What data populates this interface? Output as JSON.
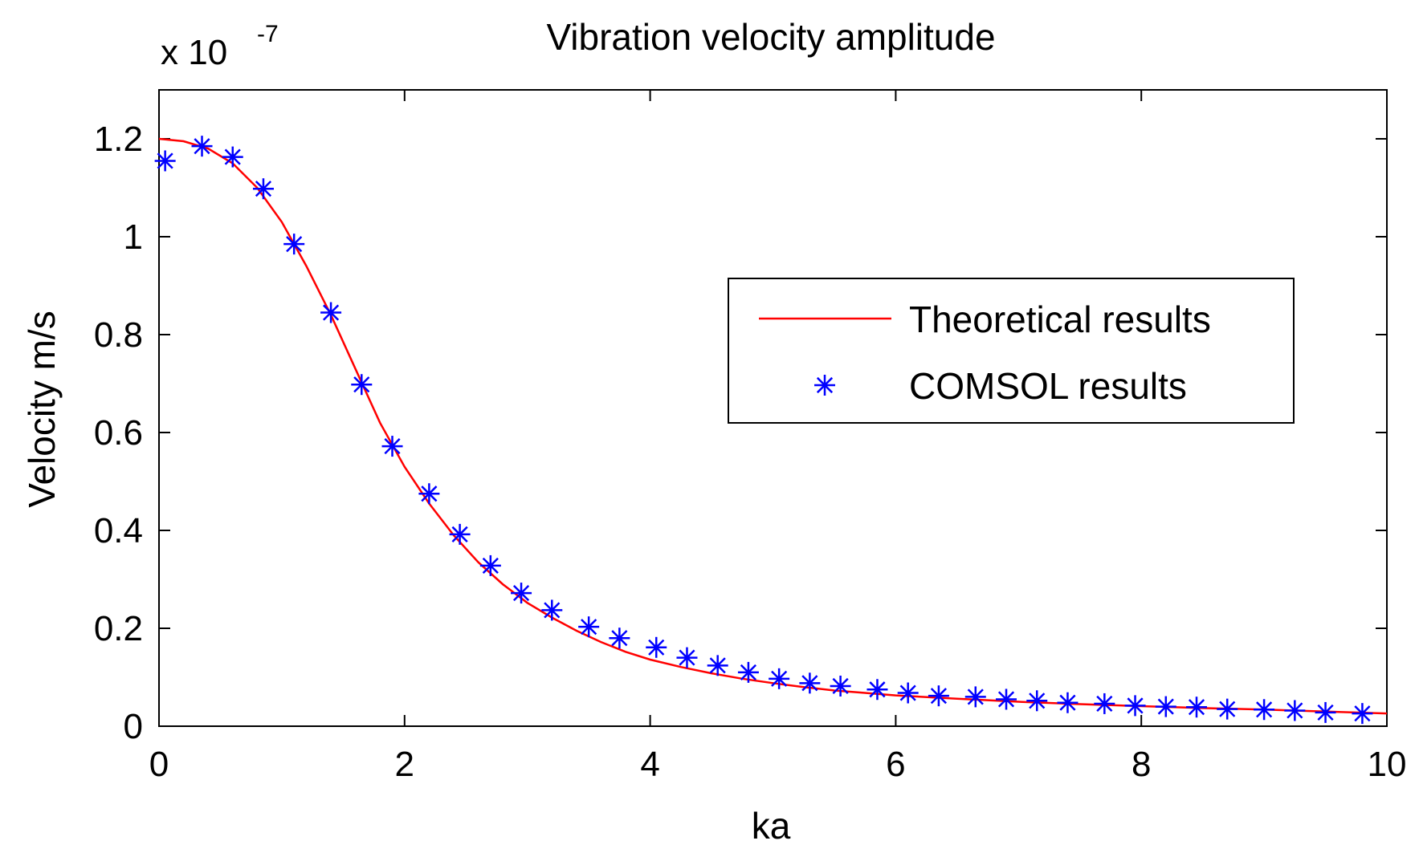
{
  "chart_data": {
    "type": "line",
    "title": "Vibration velocity amplitude",
    "xlabel": "ka",
    "ylabel": "Velocity m/s",
    "y_exponent_label": "x 10",
    "y_exponent_power": "-7",
    "xlim": [
      0,
      10
    ],
    "ylim": [
      0,
      1.3
    ],
    "xticks": [
      0,
      2,
      4,
      6,
      8,
      10
    ],
    "xtick_labels": [
      "0",
      "2",
      "4",
      "6",
      "8",
      "10"
    ],
    "yticks": [
      0,
      0.2,
      0.4,
      0.6,
      0.8,
      1.0,
      1.2
    ],
    "ytick_labels": [
      "0",
      "0.2",
      "0.4",
      "0.6",
      "0.8",
      "1",
      "1.2"
    ],
    "grid": false,
    "legend_position": "right",
    "colors": {
      "theoretical": "#ff0000",
      "comsol": "#0000ff"
    },
    "series": [
      {
        "name": "Theoretical results",
        "style": "line",
        "x": [
          0,
          0.2,
          0.4,
          0.6,
          0.8,
          1.0,
          1.2,
          1.4,
          1.6,
          1.8,
          2.0,
          2.2,
          2.4,
          2.6,
          2.8,
          3.0,
          3.2,
          3.4,
          3.6,
          3.8,
          4.0,
          4.25,
          4.5,
          4.75,
          5.0,
          5.25,
          5.5,
          5.75,
          6.0,
          6.5,
          7.0,
          7.5,
          8.0,
          8.5,
          9.0,
          9.5,
          10.0
        ],
        "values": [
          1.2,
          1.195,
          1.18,
          1.15,
          1.1,
          1.03,
          0.94,
          0.84,
          0.73,
          0.62,
          0.53,
          0.455,
          0.39,
          0.335,
          0.29,
          0.252,
          0.222,
          0.195,
          0.172,
          0.152,
          0.136,
          0.121,
          0.108,
          0.097,
          0.088,
          0.08,
          0.073,
          0.068,
          0.063,
          0.056,
          0.05,
          0.045,
          0.041,
          0.037,
          0.034,
          0.03,
          0.026
        ]
      },
      {
        "name": "COMSOL results",
        "style": "marker",
        "marker": "*",
        "x": [
          0.05,
          0.35,
          0.6,
          0.85,
          1.1,
          1.4,
          1.65,
          1.9,
          2.2,
          2.45,
          2.7,
          2.95,
          3.2,
          3.5,
          3.75,
          4.05,
          4.3,
          4.55,
          4.8,
          5.05,
          5.3,
          5.55,
          5.85,
          6.1,
          6.35,
          6.65,
          6.9,
          7.15,
          7.4,
          7.7,
          7.95,
          8.2,
          8.45,
          8.7,
          9.0,
          9.25,
          9.5,
          9.8
        ],
        "values": [
          1.155,
          1.185,
          1.163,
          1.098,
          0.985,
          0.845,
          0.698,
          0.572,
          0.475,
          0.392,
          0.328,
          0.272,
          0.237,
          0.203,
          0.18,
          0.161,
          0.14,
          0.124,
          0.11,
          0.097,
          0.088,
          0.082,
          0.075,
          0.068,
          0.062,
          0.06,
          0.055,
          0.052,
          0.048,
          0.046,
          0.042,
          0.04,
          0.039,
          0.035,
          0.034,
          0.032,
          0.028,
          0.026
        ]
      }
    ]
  }
}
